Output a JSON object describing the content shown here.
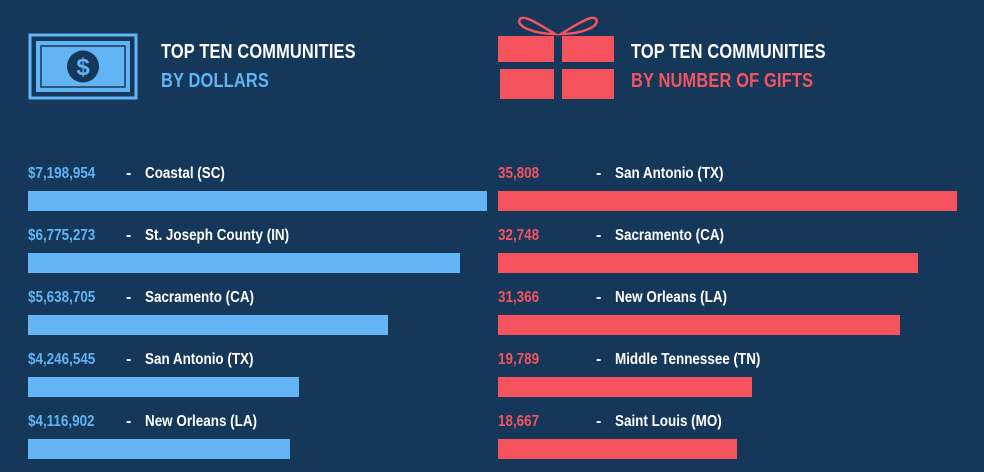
{
  "colors": {
    "background": "#14375a",
    "dollars_accent": "#62b4f5",
    "gifts_accent": "#f5545f",
    "text": "#ffffff"
  },
  "icons": {
    "dollars": "dollar-bill-icon",
    "gifts": "gift-box-icon"
  },
  "chart_data": [
    {
      "type": "bar",
      "orientation": "horizontal",
      "title_line1": "TOP TEN COMMUNITIES",
      "title_line2": "BY DOLLARS",
      "color": "#62b4f5",
      "categories": [
        "Coastal (SC)",
        "St. Joseph County (IN)",
        "Sacramento (CA)",
        "San Antonio (TX)",
        "New Orleans (LA)"
      ],
      "values": [
        7198954,
        6775273,
        5638705,
        4246545,
        4116902
      ],
      "value_labels": [
        "$7,198,954",
        "$6,775,273",
        "$5,638,705",
        "$4,246,545",
        "$4,116,902"
      ]
    },
    {
      "type": "bar",
      "orientation": "horizontal",
      "title_line1": "TOP TEN COMMUNITIES",
      "title_line2": "BY NUMBER OF GIFTS",
      "color": "#f5545f",
      "categories": [
        "San Antonio (TX)",
        "Sacramento (CA)",
        "New Orleans (LA)",
        "Middle Tennessee (TN)",
        "Saint Louis (MO)"
      ],
      "values": [
        35808,
        32748,
        31366,
        19789,
        18667
      ],
      "value_labels": [
        "35,808",
        "32,748",
        "31,366",
        "19,789",
        "18,667"
      ]
    }
  ]
}
